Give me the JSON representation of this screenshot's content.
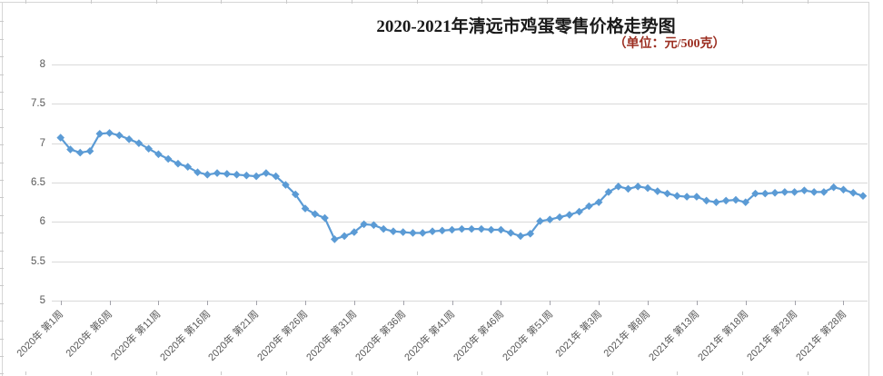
{
  "chart_data": {
    "type": "line",
    "title": "2020-2021年清远市鸡蛋零售价格走势图",
    "subtitle": "（单位：元/500克）",
    "unit": "元/500克",
    "grid": true,
    "legend": false,
    "marker": "diamond",
    "line_color": "#5B9BD5",
    "gridline_color": "#d9d9d9",
    "axis_label_color": "#595959",
    "title_color": "#1a1a1a",
    "subtitle_color": "#9c2f22",
    "ylim": [
      5,
      8
    ],
    "y_tick_values": [
      8,
      7.5,
      7,
      6.5,
      6,
      5.5,
      5
    ],
    "y_tick_labels": [
      "8",
      "7.5",
      "7",
      "6.5",
      "6",
      "5.5",
      "5"
    ],
    "x_tick_labels": [
      "2020年 第1周",
      "2020年 第6周",
      "2020年 第11周",
      "2020年 第16周",
      "2020年 第21周",
      "2020年 第26周",
      "2020年 第31周",
      "2020年 第36周",
      "2020年 第41周",
      "2020年 第46周",
      "2020年 第51周",
      "2021年 第3周",
      "2021年 第8周",
      "2021年 第13周",
      "2021年 第18周",
      "2021年 第23周",
      "2021年 第28周"
    ],
    "points_per_tick": 5,
    "x_range_note": "weekly points, 2020 week1 - 2021 week30",
    "values": [
      7.07,
      6.92,
      6.88,
      6.9,
      7.12,
      7.13,
      7.1,
      7.05,
      7.0,
      6.93,
      6.86,
      6.8,
      6.74,
      6.7,
      6.63,
      6.6,
      6.62,
      6.61,
      6.6,
      6.59,
      6.58,
      6.62,
      6.58,
      6.47,
      6.35,
      6.17,
      6.1,
      6.05,
      5.78,
      5.82,
      5.87,
      5.97,
      5.96,
      5.91,
      5.88,
      5.87,
      5.86,
      5.86,
      5.88,
      5.89,
      5.9,
      5.91,
      5.91,
      5.91,
      5.9,
      5.9,
      5.86,
      5.82,
      5.85,
      6.01,
      6.03,
      6.06,
      6.09,
      6.13,
      6.2,
      6.25,
      6.38,
      6.45,
      6.42,
      6.45,
      6.43,
      6.39,
      6.36,
      6.33,
      6.32,
      6.32,
      6.27,
      6.25,
      6.27,
      6.28,
      6.25,
      6.36,
      6.36,
      6.37,
      6.38,
      6.38,
      6.4,
      6.38,
      6.38,
      6.44,
      6.41,
      6.37,
      6.33
    ]
  }
}
